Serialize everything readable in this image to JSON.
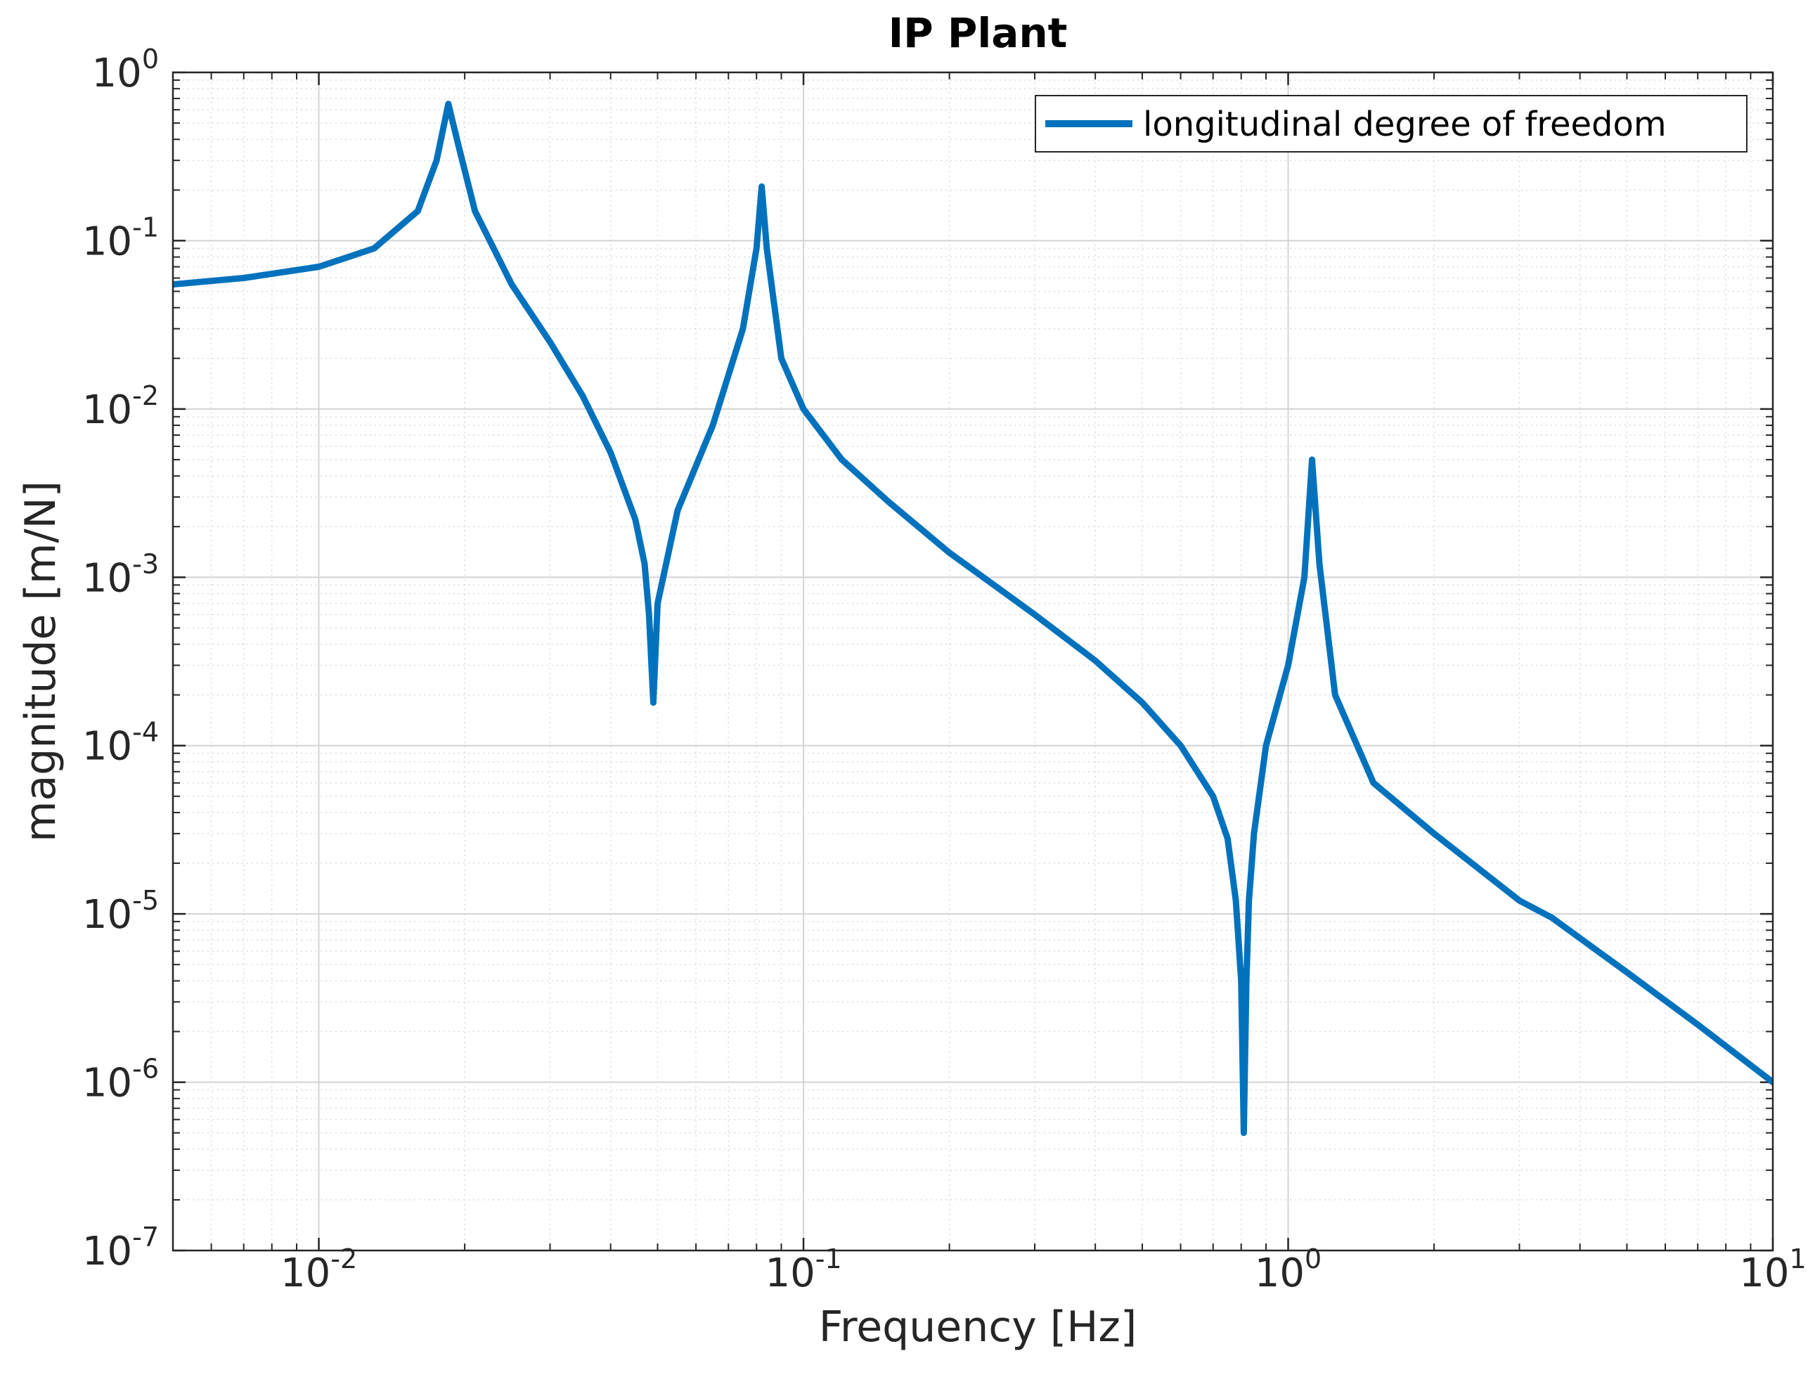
{
  "chart_data": {
    "type": "line",
    "title": "IP Plant",
    "xlabel": "Frequency [Hz]",
    "ylabel": "magnitude [m/N]",
    "xscale": "log",
    "yscale": "log",
    "xlim": [
      0.005,
      10
    ],
    "ylim": [
      1e-07,
      1
    ],
    "x_ticks": [
      {
        "mantissa": "10",
        "exp": "-2",
        "value": 0.01
      },
      {
        "mantissa": "10",
        "exp": "-1",
        "value": 0.1
      },
      {
        "mantissa": "10",
        "exp": "0",
        "value": 1
      },
      {
        "mantissa": "10",
        "exp": "1",
        "value": 10
      }
    ],
    "y_ticks": [
      {
        "mantissa": "10",
        "exp": "0",
        "value": 1
      },
      {
        "mantissa": "10",
        "exp": "-1",
        "value": 0.1
      },
      {
        "mantissa": "10",
        "exp": "-2",
        "value": 0.01
      },
      {
        "mantissa": "10",
        "exp": "-3",
        "value": 0.001
      },
      {
        "mantissa": "10",
        "exp": "-4",
        "value": 0.0001
      },
      {
        "mantissa": "10",
        "exp": "-5",
        "value": 1e-05
      },
      {
        "mantissa": "10",
        "exp": "-6",
        "value": 1e-06
      },
      {
        "mantissa": "10",
        "exp": "-7",
        "value": 1e-07
      }
    ],
    "grid": true,
    "minor_grid": true,
    "legend_position": "top-right",
    "series": [
      {
        "name": "longitudinal degree of freedom",
        "color": "#0072bd",
        "x": [
          0.005,
          0.007,
          0.01,
          0.013,
          0.016,
          0.0175,
          0.0185,
          0.0195,
          0.021,
          0.025,
          0.03,
          0.035,
          0.04,
          0.045,
          0.047,
          0.048,
          0.049,
          0.05,
          0.055,
          0.065,
          0.075,
          0.08,
          0.082,
          0.084,
          0.09,
          0.1,
          0.12,
          0.15,
          0.2,
          0.3,
          0.4,
          0.5,
          0.6,
          0.7,
          0.75,
          0.78,
          0.8,
          0.81,
          0.82,
          0.83,
          0.85,
          0.9,
          1.0,
          1.08,
          1.12,
          1.16,
          1.25,
          1.5,
          2.0,
          3.0,
          3.5,
          5.0,
          7.0,
          10.0
        ],
        "y": [
          0.055,
          0.06,
          0.07,
          0.09,
          0.15,
          0.3,
          0.65,
          0.35,
          0.15,
          0.055,
          0.025,
          0.012,
          0.0055,
          0.0022,
          0.0012,
          0.0006,
          0.00018,
          0.0007,
          0.0025,
          0.008,
          0.03,
          0.09,
          0.21,
          0.09,
          0.02,
          0.01,
          0.005,
          0.0028,
          0.0014,
          0.0006,
          0.00032,
          0.00018,
          0.0001,
          5e-05,
          2.8e-05,
          1.2e-05,
          4e-06,
          5e-07,
          4e-06,
          1.2e-05,
          3e-05,
          0.0001,
          0.0003,
          0.001,
          0.005,
          0.0012,
          0.0002,
          6e-05,
          3e-05,
          1.2e-05,
          9.5e-06,
          4.5e-06,
          2.2e-06,
          1e-06
        ]
      }
    ]
  }
}
